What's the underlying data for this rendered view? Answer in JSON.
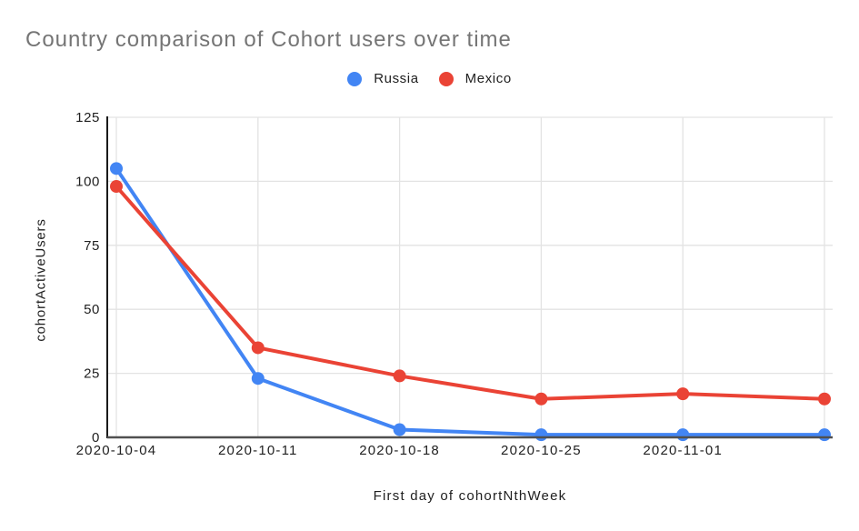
{
  "chart_data": {
    "type": "line",
    "title": "Country comparison of Cohort users over time",
    "xlabel": "First day of cohortNthWeek",
    "ylabel": "cohortActiveUsers",
    "categories": [
      "2020-10-04",
      "2020-10-11",
      "2020-10-18",
      "2020-10-25",
      "2020-11-01",
      ""
    ],
    "series": [
      {
        "name": "Russia",
        "color": "#4285F4",
        "values": [
          105,
          23,
          3,
          1,
          1,
          1
        ]
      },
      {
        "name": "Mexico",
        "color": "#EA4335",
        "values": [
          98,
          35,
          24,
          15,
          17,
          15
        ]
      }
    ],
    "ylim": [
      0,
      125
    ],
    "yticks": [
      0,
      25,
      50,
      75,
      100,
      125
    ],
    "grid": true,
    "legend_position": "top",
    "colors": {
      "title_text": "#757575",
      "tick_text": "#212121",
      "gridline": "#e3e3e3",
      "y_axis_line": "#1a1a1a",
      "x_baseline": "#505050"
    }
  }
}
